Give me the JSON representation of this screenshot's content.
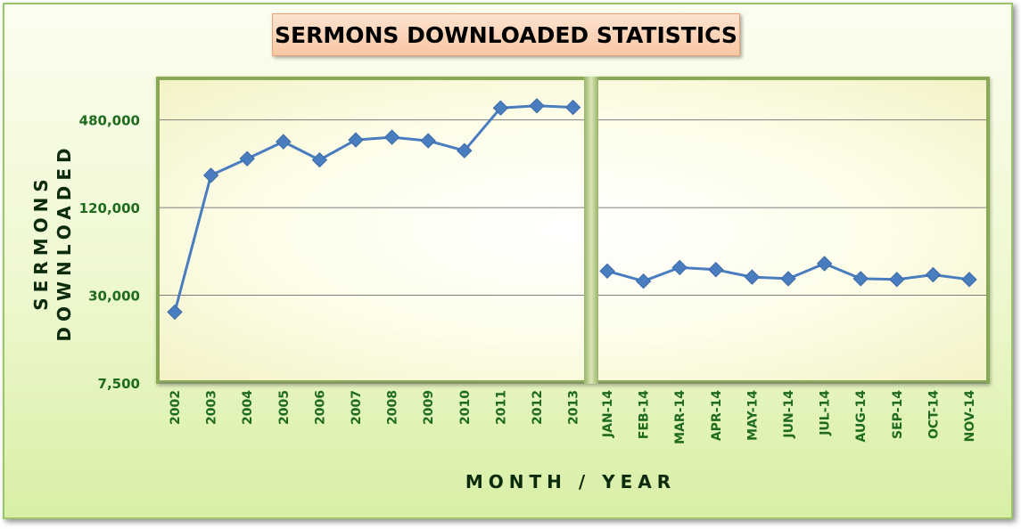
{
  "chart_data": {
    "type": "line",
    "title": "SERMONS DOWNLOADED STATISTICS",
    "xlabel": "MONTH / YEAR",
    "ylabel": "SERMONS DOWNLOADED",
    "y_scale": "log",
    "ylim": [
      7500,
      900000
    ],
    "yticks": [
      {
        "value": 7500,
        "label": "7,500"
      },
      {
        "value": 30000,
        "label": "30,000"
      },
      {
        "value": 120000,
        "label": "120,000"
      },
      {
        "value": 480000,
        "label": "480,000"
      }
    ],
    "grid": "horizontal",
    "colors": {
      "line": "#4a7dbf",
      "marker": "#4a7dbf",
      "tick_text": "#1e6b1e"
    },
    "segments": [
      {
        "categories": [
          "2002",
          "2003",
          "2004",
          "2005",
          "2006",
          "2007",
          "2008",
          "2009",
          "2010",
          "2011",
          "2012",
          "2013"
        ],
        "values": [
          23000,
          200000,
          260000,
          340000,
          255000,
          350000,
          365000,
          345000,
          295000,
          580000,
          600000,
          585000
        ]
      },
      {
        "categories": [
          "JAN-14",
          "FEB-14",
          "MAR-14",
          "APR-14",
          "MAY-14",
          "JUN-14",
          "JUL-14",
          "AUG-14",
          "SEP-14",
          "OCT-14",
          "NOV-14"
        ],
        "values": [
          44000,
          37500,
          46500,
          45000,
          40000,
          39000,
          49500,
          39000,
          38500,
          41500,
          38500
        ]
      }
    ]
  }
}
